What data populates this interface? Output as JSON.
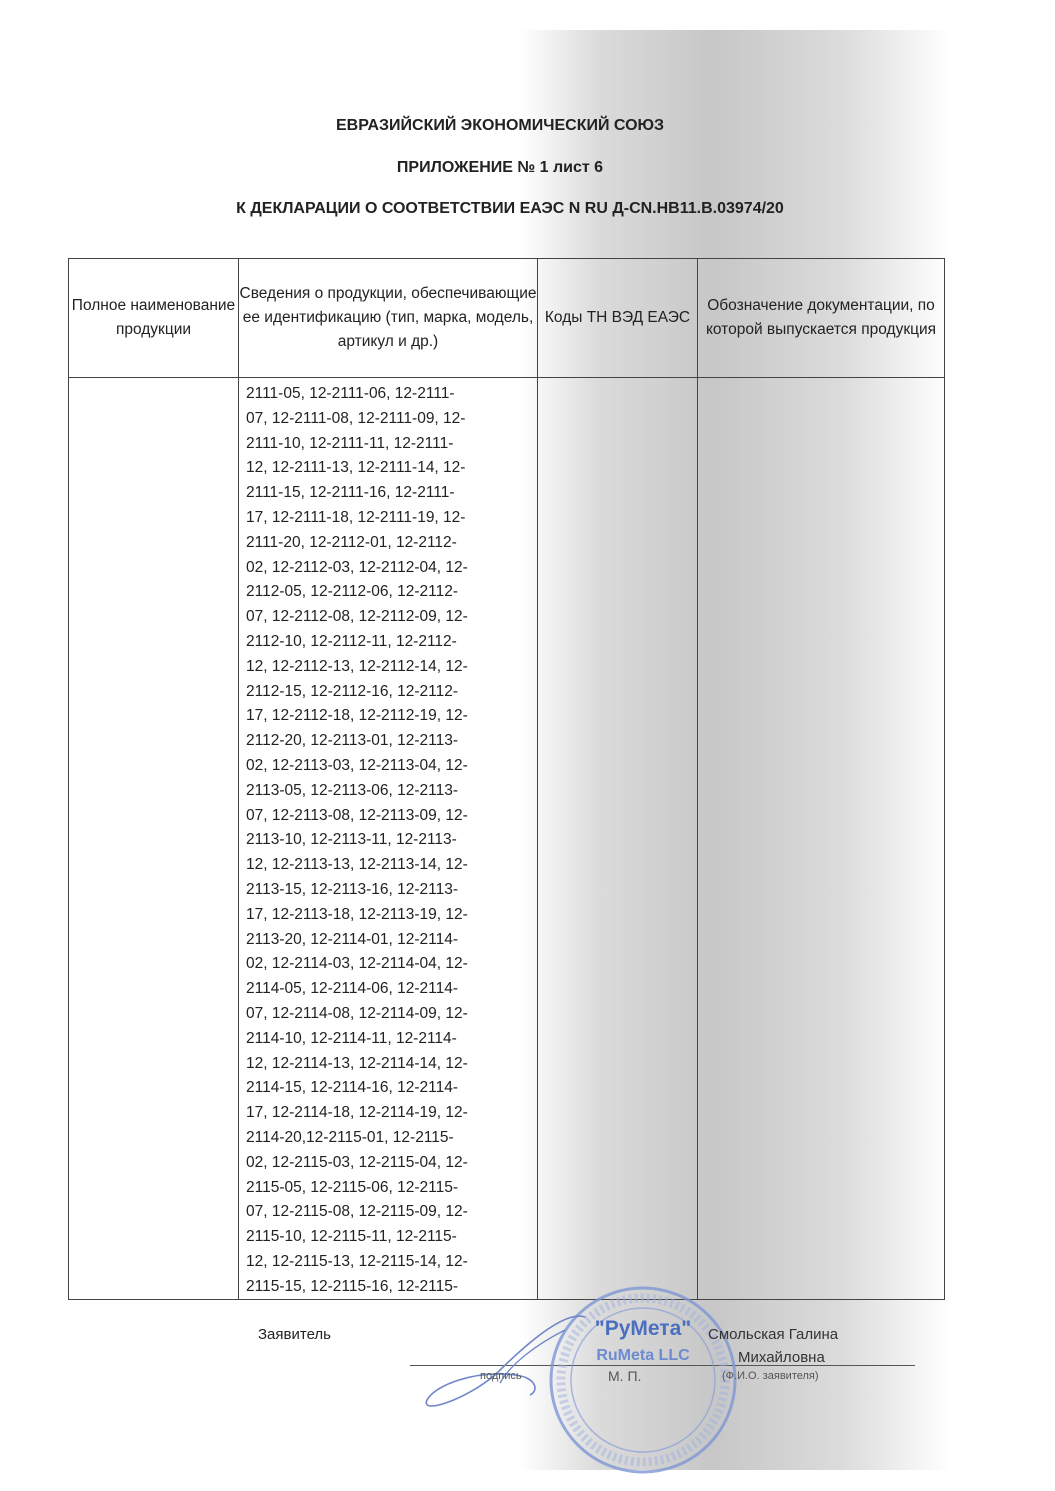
{
  "header": {
    "line1": "ЕВРАЗИЙСКИЙ ЭКОНОМИЧЕСКИЙ СОЮЗ",
    "line2": "ПРИЛОЖЕНИЕ № 1 лист 6",
    "line3": "К ДЕКЛАРАЦИИ О СООТВЕТСТВИИ ЕАЭС N RU Д-CN.НВ11.В.03974/20"
  },
  "table": {
    "columns": [
      "Полное наименование продукции",
      "Сведения о продукции, обеспечивающие ее идентификацию (тип, марка, модель, артикул и др.)",
      "Коды ТН ВЭД ЕАЭС",
      "Обозначение документации, по которой выпускается продукция"
    ],
    "model_lines": [
      "2111-05, 12-2111-06, 12-2111-",
      "07, 12-2111-08, 12-2111-09, 12-",
      "2111-10, 12-2111-11, 12-2111-",
      "12, 12-2111-13, 12-2111-14, 12-",
      "2111-15, 12-2111-16, 12-2111-",
      "17, 12-2111-18, 12-2111-19, 12-",
      "2111-20, 12-2112-01, 12-2112-",
      "02, 12-2112-03, 12-2112-04, 12-",
      "2112-05, 12-2112-06, 12-2112-",
      "07, 12-2112-08, 12-2112-09, 12-",
      "2112-10, 12-2112-11, 12-2112-",
      "12, 12-2112-13, 12-2112-14, 12-",
      "2112-15, 12-2112-16, 12-2112-",
      "17, 12-2112-18, 12-2112-19, 12-",
      "2112-20, 12-2113-01, 12-2113-",
      "02, 12-2113-03, 12-2113-04, 12-",
      "2113-05, 12-2113-06, 12-2113-",
      "07, 12-2113-08, 12-2113-09, 12-",
      "2113-10, 12-2113-11, 12-2113-",
      "12, 12-2113-13, 12-2113-14, 12-",
      "2113-15, 12-2113-16, 12-2113-",
      "17, 12-2113-18, 12-2113-19, 12-",
      "2113-20, 12-2114-01, 12-2114-",
      "02, 12-2114-03, 12-2114-04, 12-",
      "2114-05, 12-2114-06, 12-2114-",
      "07, 12-2114-08, 12-2114-09, 12-",
      "2114-10, 12-2114-11, 12-2114-",
      "12, 12-2114-13, 12-2114-14, 12-",
      "2114-15, 12-2114-16, 12-2114-",
      "17, 12-2114-18, 12-2114-19, 12-",
      "2114-20,12-2115-01, 12-2115-",
      "02, 12-2115-03, 12-2115-04, 12-",
      "2115-05, 12-2115-06, 12-2115-",
      "07, 12-2115-08, 12-2115-09, 12-",
      "2115-10, 12-2115-11, 12-2115-",
      "12, 12-2115-13, 12-2115-14, 12-",
      "2115-15, 12-2115-16, 12-2115-"
    ]
  },
  "footer": {
    "applicant_label": "Заявитель",
    "name_line1": "Смольская Галина",
    "name_line2": "Михайловна",
    "signature_caption": "подпись",
    "seal_caption": "М. П.",
    "name_caption": "(Ф.И.О. заявителя)"
  },
  "stamp": {
    "text1": "\"РуМета\"",
    "text2": "RuMeta LLC",
    "color": "#4a6fc0"
  }
}
